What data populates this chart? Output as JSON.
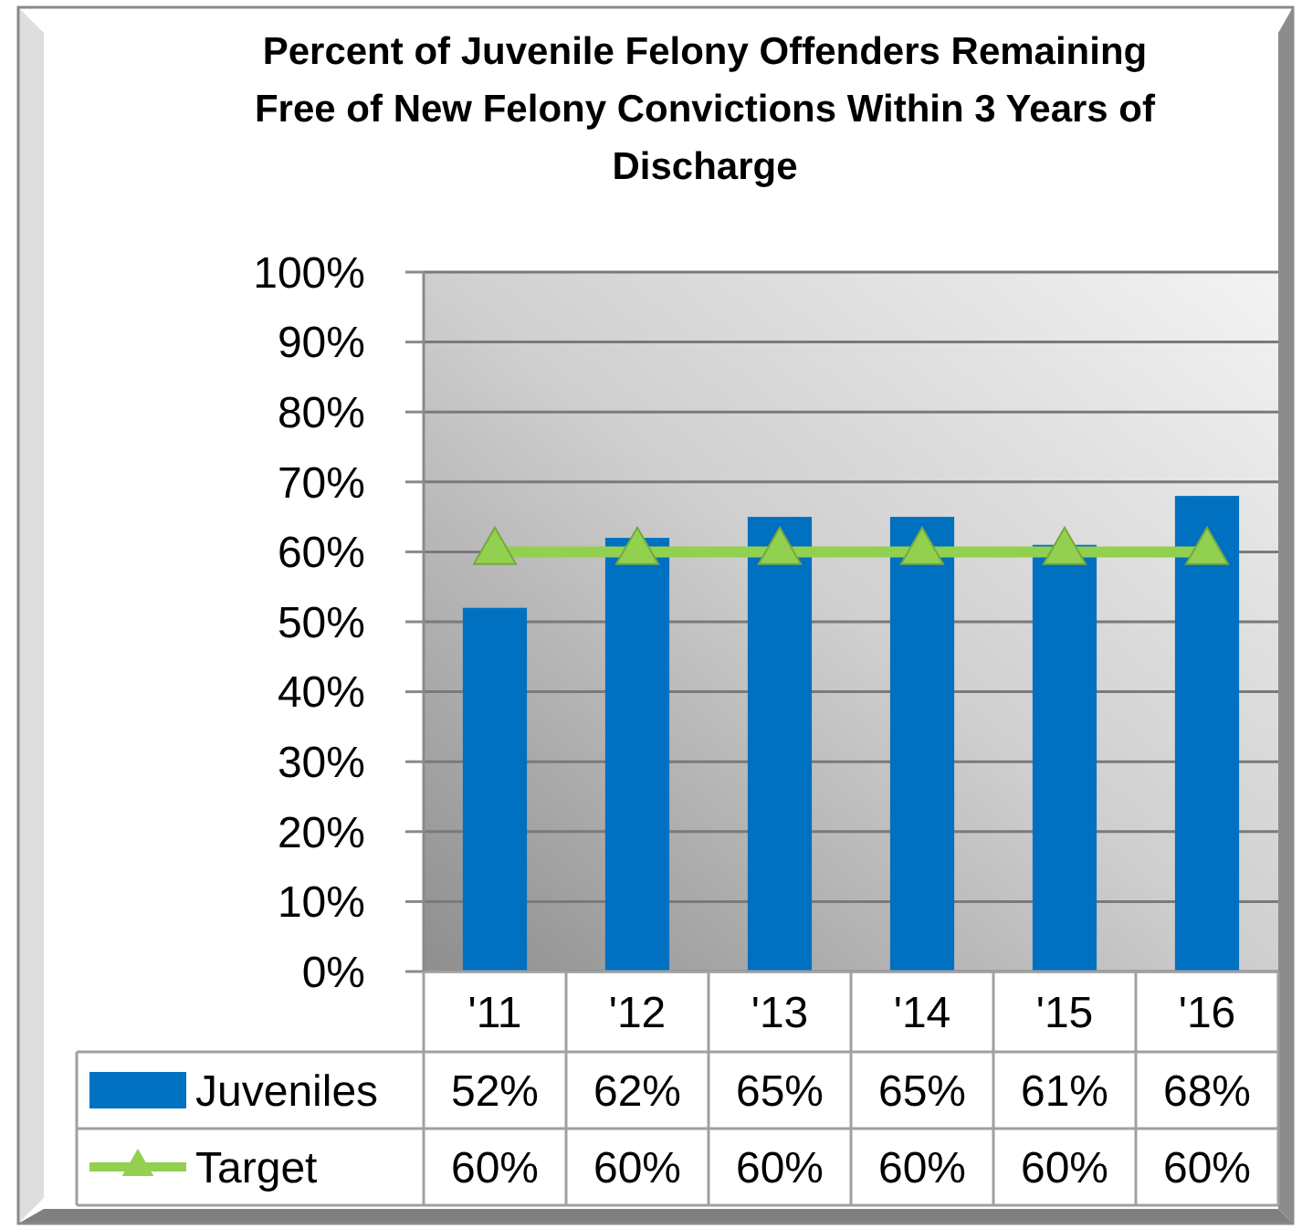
{
  "chart_data": {
    "type": "bar",
    "title": "Percent of Juvenile Felony Offenders Remaining Free of New Felony Convictions Within 3 Years of Discharge",
    "categories": [
      "'11",
      "'12",
      "'13",
      "'14",
      "'15",
      "'16"
    ],
    "series": [
      {
        "name": "Juveniles",
        "color": "#0070c0",
        "values": [
          52,
          62,
          65,
          65,
          61,
          68
        ],
        "value_labels": [
          "52%",
          "62%",
          "65%",
          "65%",
          "61%",
          "68%"
        ]
      },
      {
        "name": "Target",
        "type": "line",
        "color": "#92d050",
        "marker": "triangle",
        "values": [
          60,
          60,
          60,
          60,
          60,
          60
        ],
        "value_labels": [
          "60%",
          "60%",
          "60%",
          "60%",
          "60%",
          "60%"
        ]
      }
    ],
    "ylim": [
      0,
      100
    ],
    "yticks": [
      {
        "value": 0,
        "label": "0%"
      },
      {
        "value": 10,
        "label": "10%"
      },
      {
        "value": 20,
        "label": "20%"
      },
      {
        "value": 30,
        "label": "30%"
      },
      {
        "value": 40,
        "label": "40%"
      },
      {
        "value": 50,
        "label": "50%"
      },
      {
        "value": 60,
        "label": "60%"
      },
      {
        "value": 70,
        "label": "70%"
      },
      {
        "value": 80,
        "label": "80%"
      },
      {
        "value": 90,
        "label": "90%"
      },
      {
        "value": 100,
        "label": "100%"
      }
    ],
    "grid": "y",
    "legend": "bottom"
  }
}
